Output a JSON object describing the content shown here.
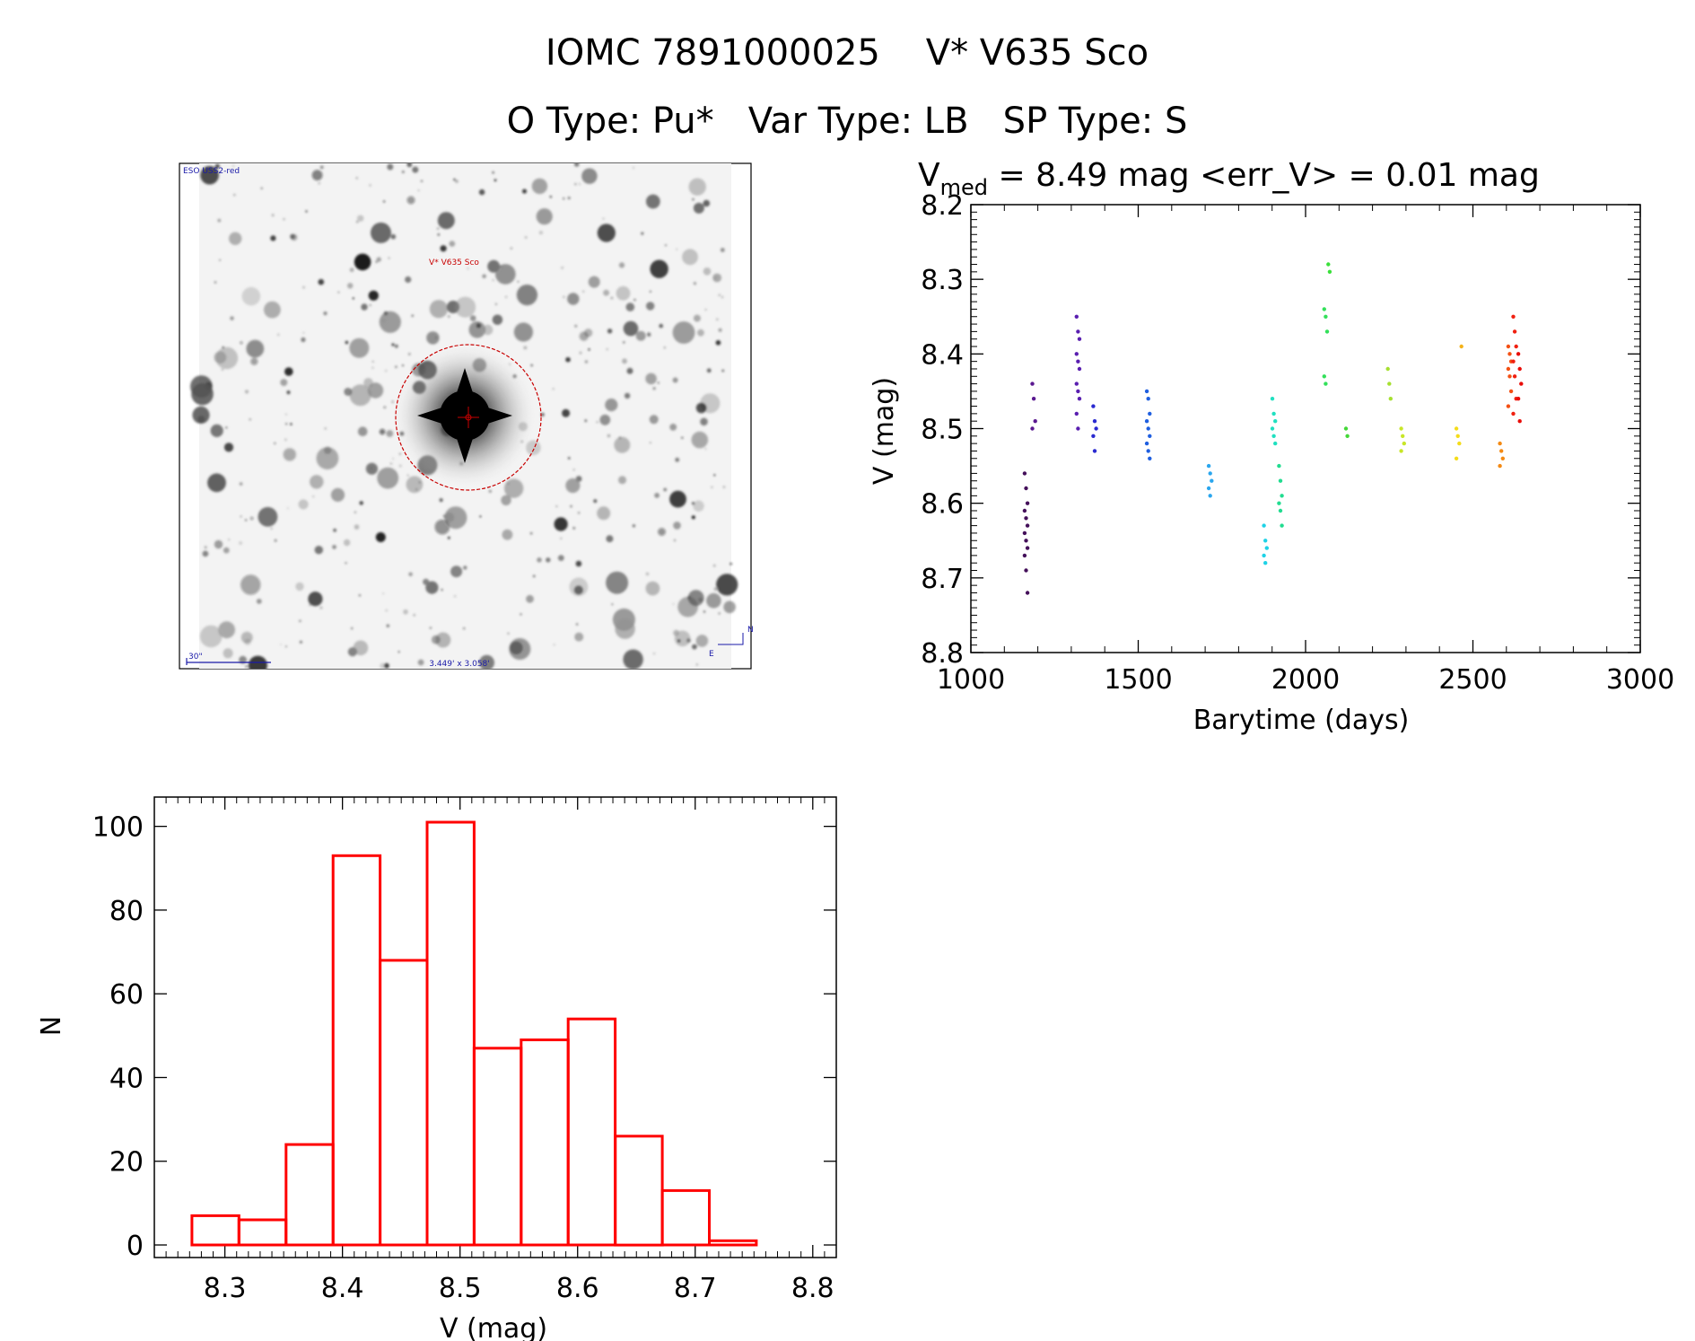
{
  "header": {
    "title_line1": "IOMC 7891000025    V* V635 Sco",
    "title_line2": "O Type: Pu*   Var Type: LB   SP Type: S"
  },
  "image_panel": {
    "survey_label": "ESO USS2-red",
    "target_label": "V* V635 Sco",
    "scale_label": "30\"",
    "size_label": "3.449' x 3.058'",
    "compass_n": "N",
    "compass_e": "E"
  },
  "colors": {
    "histogram": "#ff0000",
    "axes": "#000000",
    "reticle": "#c80000",
    "finder_annotation": "#1a1aa8"
  },
  "chart_data": [
    {
      "type": "scatter",
      "title_prefix": "V",
      "title_subscript": "med",
      "title_rest": " = 8.49 mag <err_V> = 0.01 mag",
      "xlabel": "Barytime (days)",
      "ylabel": "V (mag)",
      "xlim": [
        1000,
        3000
      ],
      "ylim": [
        8.8,
        8.2
      ],
      "y_inverted": true,
      "xticks": [
        "1000",
        "1500",
        "2000",
        "2500",
        "3000"
      ],
      "yticks": [
        "8.2",
        "8.3",
        "8.4",
        "8.5",
        "8.6",
        "8.7",
        "8.8"
      ],
      "color_scale": "time (rainbow: purple to red)",
      "groups": [
        {
          "x": 1165,
          "color": "#44105a",
          "y": [
            8.56,
            8.58,
            8.6,
            8.61,
            8.62,
            8.63,
            8.64,
            8.65,
            8.66,
            8.67,
            8.69,
            8.72
          ]
        },
        {
          "x": 1188,
          "color": "#5a1890",
          "y": [
            8.44,
            8.46,
            8.49,
            8.5
          ]
        },
        {
          "x": 1320,
          "color": "#5a1fb0",
          "y": [
            8.35,
            8.37,
            8.38,
            8.4,
            8.41,
            8.42,
            8.44,
            8.45,
            8.46,
            8.48,
            8.5
          ]
        },
        {
          "x": 1370,
          "color": "#2a2ad0",
          "y": [
            8.47,
            8.49,
            8.5,
            8.51,
            8.53
          ]
        },
        {
          "x": 1530,
          "color": "#1f5fe0",
          "y": [
            8.45,
            8.46,
            8.48,
            8.49,
            8.5,
            8.51,
            8.52,
            8.53,
            8.54
          ]
        },
        {
          "x": 1715,
          "color": "#2aa6ee",
          "y": [
            8.55,
            8.56,
            8.57,
            8.58,
            8.59
          ]
        },
        {
          "x": 1880,
          "color": "#1ed2e6",
          "y": [
            8.63,
            8.65,
            8.66,
            8.67,
            8.68
          ]
        },
        {
          "x": 1905,
          "color": "#20e0c0",
          "y": [
            8.46,
            8.48,
            8.49,
            8.5,
            8.51,
            8.52
          ]
        },
        {
          "x": 1925,
          "color": "#22dc90",
          "y": [
            8.55,
            8.57,
            8.59,
            8.6,
            8.61,
            8.63
          ]
        },
        {
          "x": 2060,
          "color": "#33e05a",
          "y": [
            8.34,
            8.35,
            8.37,
            8.43,
            8.44
          ]
        },
        {
          "x": 2072,
          "color": "#3ae03a",
          "y": [
            8.28,
            8.29
          ]
        },
        {
          "x": 2125,
          "color": "#44d838",
          "y": [
            8.5,
            8.51
          ]
        },
        {
          "x": 2250,
          "color": "#a6e030",
          "y": [
            8.42,
            8.44,
            8.46
          ]
        },
        {
          "x": 2290,
          "color": "#c8e628",
          "y": [
            8.5,
            8.51,
            8.52,
            8.53
          ]
        },
        {
          "x": 2455,
          "color": "#f4dc1a",
          "y": [
            8.5,
            8.51,
            8.52,
            8.54
          ]
        },
        {
          "x": 2470,
          "color": "#f4b21a",
          "y": [
            8.39
          ]
        },
        {
          "x": 2585,
          "color": "#f48a14",
          "y": [
            8.52,
            8.53,
            8.54,
            8.55
          ]
        },
        {
          "x": 2610,
          "color": "#f45014",
          "y": [
            8.39,
            8.4,
            8.41,
            8.42,
            8.43,
            8.45,
            8.47
          ]
        },
        {
          "x": 2625,
          "color": "#f02010",
          "y": [
            8.35,
            8.37,
            8.39,
            8.41,
            8.43,
            8.46,
            8.48
          ]
        },
        {
          "x": 2640,
          "color": "#e80c08",
          "y": [
            8.4,
            8.42,
            8.44,
            8.46,
            8.49
          ]
        }
      ]
    },
    {
      "type": "bar",
      "subtype": "histogram",
      "xlabel": "V (mag)",
      "ylabel": "N",
      "xlim": [
        8.24,
        8.82
      ],
      "ylim": [
        -3,
        107
      ],
      "xticks": [
        "8.3",
        "8.4",
        "8.5",
        "8.6",
        "8.7",
        "8.8"
      ],
      "yticks": [
        "0",
        "20",
        "40",
        "60",
        "80",
        "100"
      ],
      "bin_width": 0.04,
      "bin_starts": [
        8.272,
        8.312,
        8.352,
        8.392,
        8.432,
        8.472,
        8.512,
        8.552,
        8.592,
        8.632,
        8.672,
        8.712
      ],
      "values": [
        7,
        6,
        24,
        93,
        68,
        101,
        47,
        49,
        54,
        26,
        13,
        1
      ]
    }
  ]
}
